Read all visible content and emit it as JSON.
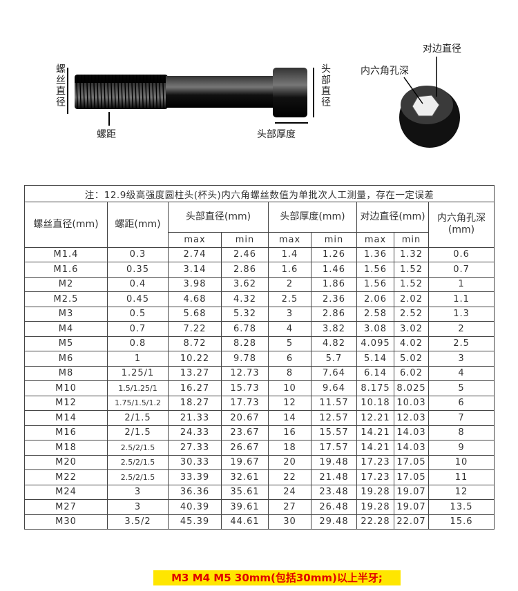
{
  "diagram": {
    "thread_diameter": "螺丝直径",
    "pitch": "螺距",
    "head_diameter": "头部直径",
    "head_thickness": "头部厚度",
    "across_flats": "对边直径",
    "socket_depth": "内六角孔深"
  },
  "table": {
    "note": "注：12.9级高强度圆柱头(杯头)内六角螺丝数值为单批次人工测量，存在一定误差",
    "headers": [
      "螺丝直径(mm)",
      "螺距(mm)",
      "头部直径(mm)",
      "头部厚度(mm)",
      "对边直径(mm)",
      "内六角孔深(mm)"
    ],
    "subheaders": [
      "max",
      "min",
      "max",
      "min",
      "max",
      "min"
    ],
    "rows": [
      [
        "M1.4",
        "0.3",
        "2.74",
        "2.46",
        "1.4",
        "1.26",
        "1.36",
        "1.32",
        "0.6"
      ],
      [
        "M1.6",
        "0.35",
        "3.14",
        "2.86",
        "1.6",
        "1.46",
        "1.56",
        "1.52",
        "0.7"
      ],
      [
        "M2",
        "0.4",
        "3.98",
        "3.62",
        "2",
        "1.86",
        "1.56",
        "1.52",
        "1"
      ],
      [
        "M2.5",
        "0.45",
        "4.68",
        "4.32",
        "2.5",
        "2.36",
        "2.06",
        "2.02",
        "1.1"
      ],
      [
        "M3",
        "0.5",
        "5.68",
        "5.32",
        "3",
        "2.86",
        "2.58",
        "2.52",
        "1.3"
      ],
      [
        "M4",
        "0.7",
        "7.22",
        "6.78",
        "4",
        "3.82",
        "3.08",
        "3.02",
        "2"
      ],
      [
        "M5",
        "0.8",
        "8.72",
        "8.28",
        "5",
        "4.82",
        "4.095",
        "4.02",
        "2.5"
      ],
      [
        "M6",
        "1",
        "10.22",
        "9.78",
        "6",
        "5.7",
        "5.14",
        "5.02",
        "3"
      ],
      [
        "M8",
        "1.25/1",
        "13.27",
        "12.73",
        "8",
        "7.64",
        "6.14",
        "6.02",
        "4"
      ],
      [
        "M10",
        "1.5/1.25/1",
        "16.27",
        "15.73",
        "10",
        "9.64",
        "8.175",
        "8.025",
        "5"
      ],
      [
        "M12",
        "1.75/1.5/1.2",
        "18.27",
        "17.73",
        "12",
        "11.57",
        "10.18",
        "10.03",
        "6"
      ],
      [
        "M14",
        "2/1.5",
        "21.33",
        "20.67",
        "14",
        "12.57",
        "12.21",
        "12.03",
        "7"
      ],
      [
        "M16",
        "2/1.5",
        "24.33",
        "23.67",
        "16",
        "15.57",
        "14.21",
        "14.03",
        "8"
      ],
      [
        "M18",
        "2.5/2/1.5",
        "27.33",
        "26.67",
        "18",
        "17.57",
        "14.21",
        "14.03",
        "9"
      ],
      [
        "M20",
        "2.5/2/1.5",
        "30.33",
        "19.67",
        "20",
        "19.48",
        "17.23",
        "17.05",
        "10"
      ],
      [
        "M22",
        "2.5/2/1.5",
        "33.39",
        "32.61",
        "22",
        "21.48",
        "17.23",
        "17.05",
        "11"
      ],
      [
        "M24",
        "3",
        "36.36",
        "35.61",
        "24",
        "23.48",
        "19.28",
        "19.07",
        "12"
      ],
      [
        "M27",
        "3",
        "40.39",
        "39.61",
        "27",
        "26.48",
        "19.28",
        "19.07",
        "13.5"
      ],
      [
        "M30",
        "3.5/2",
        "45.39",
        "44.61",
        "30",
        "29.48",
        "22.28",
        "22.07",
        "15.6"
      ]
    ]
  },
  "footer": "M3 M4 M5 30mm(包括30mm)以上半牙;"
}
